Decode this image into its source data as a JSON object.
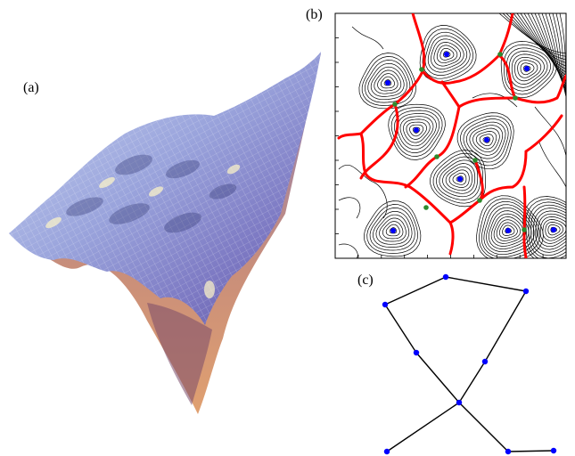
{
  "labels": {
    "a": "(a)",
    "b": "(b)",
    "c": "(c)"
  },
  "colors": {
    "contour": "#000000",
    "boundary": "#ff0000",
    "minimum": "#0000ff",
    "saddle": "#2e8b2e",
    "graph_edge": "#000000",
    "graph_node": "#0000ff"
  }
}
